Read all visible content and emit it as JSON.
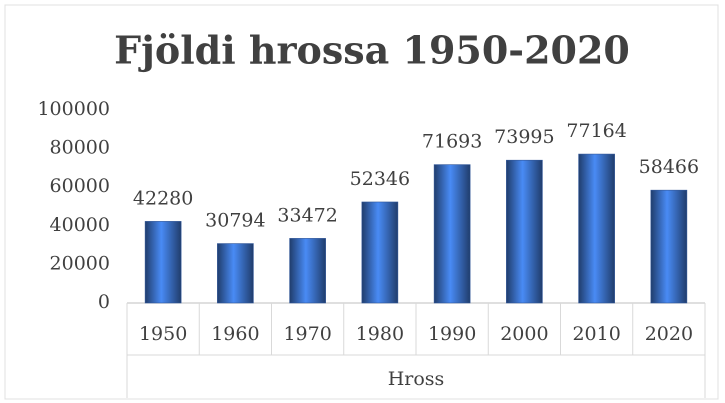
{
  "chart_data": {
    "type": "bar",
    "title": "Fjöldi hrossa 1950-2020",
    "categories": [
      "1950",
      "1960",
      "1970",
      "1980",
      "1990",
      "2000",
      "2010",
      "2020"
    ],
    "values": [
      42280,
      30794,
      33472,
      52346,
      71693,
      73995,
      77164,
      58466
    ],
    "xlabel": "Hross",
    "color": "#3a6fc4",
    "ylim": [
      0,
      100000
    ],
    "yticks": [
      0,
      20000,
      40000,
      60000,
      80000,
      100000
    ],
    "grid": false
  }
}
